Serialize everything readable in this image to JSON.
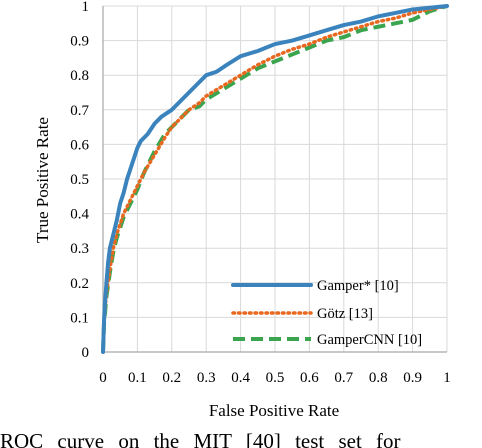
{
  "chart_data": {
    "type": "line",
    "xlabel": "False Positive Rate",
    "ylabel": "True Positive Rate",
    "xlim": [
      0,
      1
    ],
    "ylim": [
      0,
      1
    ],
    "xticks": [
      "0",
      "0.1",
      "0.2",
      "0.3",
      "0.4",
      "0.5",
      "0.6",
      "0.7",
      "0.8",
      "0.9",
      "1"
    ],
    "yticks": [
      "0",
      "0.1",
      "0.2",
      "0.3",
      "0.4",
      "0.5",
      "0.6",
      "0.7",
      "0.8",
      "0.9",
      "1"
    ],
    "grid": true,
    "legend_position": "bottom-right",
    "series": [
      {
        "name": "Gamper* [10]",
        "color": "#3b83bd",
        "style": "solid",
        "x": [
          0,
          0.003,
          0.005,
          0.01,
          0.015,
          0.02,
          0.03,
          0.04,
          0.05,
          0.06,
          0.07,
          0.08,
          0.09,
          0.1,
          0.11,
          0.12,
          0.13,
          0.15,
          0.17,
          0.2,
          0.22,
          0.25,
          0.28,
          0.3,
          0.33,
          0.36,
          0.4,
          0.45,
          0.5,
          0.55,
          0.6,
          0.65,
          0.7,
          0.75,
          0.8,
          0.85,
          0.9,
          0.95,
          1.0
        ],
        "y": [
          0,
          0.09,
          0.13,
          0.2,
          0.26,
          0.3,
          0.34,
          0.38,
          0.43,
          0.46,
          0.5,
          0.53,
          0.56,
          0.59,
          0.61,
          0.62,
          0.63,
          0.66,
          0.68,
          0.7,
          0.72,
          0.75,
          0.78,
          0.8,
          0.81,
          0.83,
          0.855,
          0.87,
          0.89,
          0.9,
          0.915,
          0.93,
          0.945,
          0.955,
          0.97,
          0.98,
          0.99,
          0.995,
          1.0
        ]
      },
      {
        "name": "Götz [13]",
        "color": "#e8681f",
        "style": "dotted",
        "x": [
          0,
          0.003,
          0.01,
          0.02,
          0.03,
          0.04,
          0.05,
          0.06,
          0.07,
          0.08,
          0.1,
          0.12,
          0.15,
          0.18,
          0.2,
          0.23,
          0.25,
          0.28,
          0.3,
          0.35,
          0.4,
          0.45,
          0.5,
          0.55,
          0.6,
          0.65,
          0.7,
          0.75,
          0.8,
          0.85,
          0.9,
          0.95,
          1.0
        ],
        "y": [
          0,
          0.09,
          0.17,
          0.24,
          0.3,
          0.34,
          0.37,
          0.4,
          0.42,
          0.44,
          0.48,
          0.52,
          0.57,
          0.62,
          0.65,
          0.68,
          0.7,
          0.72,
          0.74,
          0.77,
          0.8,
          0.83,
          0.855,
          0.875,
          0.89,
          0.91,
          0.925,
          0.94,
          0.955,
          0.965,
          0.98,
          0.99,
          1.0
        ]
      },
      {
        "name": "GamperCNN [10]",
        "color": "#3aa54e",
        "style": "dashed",
        "x": [
          0,
          0.003,
          0.01,
          0.02,
          0.03,
          0.04,
          0.05,
          0.06,
          0.07,
          0.08,
          0.1,
          0.12,
          0.15,
          0.18,
          0.2,
          0.23,
          0.25,
          0.28,
          0.3,
          0.35,
          0.4,
          0.45,
          0.5,
          0.55,
          0.6,
          0.65,
          0.7,
          0.75,
          0.8,
          0.85,
          0.9,
          0.95,
          1.0
        ],
        "y": [
          0,
          0.08,
          0.16,
          0.23,
          0.29,
          0.33,
          0.36,
          0.39,
          0.41,
          0.43,
          0.47,
          0.52,
          0.58,
          0.63,
          0.65,
          0.68,
          0.7,
          0.71,
          0.73,
          0.76,
          0.79,
          0.82,
          0.84,
          0.86,
          0.88,
          0.9,
          0.91,
          0.93,
          0.94,
          0.95,
          0.96,
          0.985,
          1.0
        ]
      }
    ]
  },
  "caption": "ROC curve on the MIT [40] test set for"
}
